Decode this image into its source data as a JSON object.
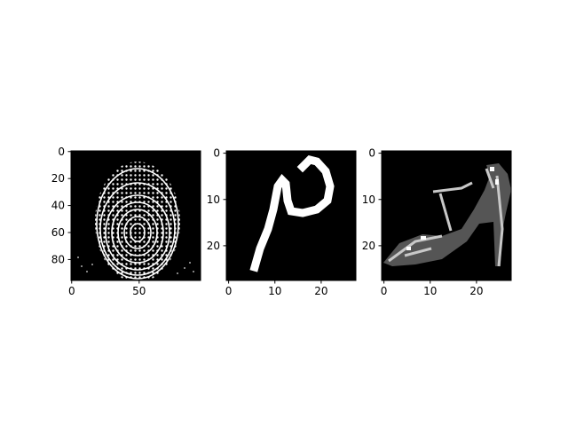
{
  "chart_data": [
    {
      "type": "heatmap",
      "image": "fingerprint",
      "colormap": "gray",
      "xlim": [
        -0.5,
        95.5
      ],
      "ylim": [
        95.5,
        -0.5
      ],
      "xticks": [
        0,
        50
      ],
      "yticks": [
        0,
        20,
        40,
        60,
        80
      ],
      "xticklabels": [
        "0",
        "50"
      ],
      "yticklabels": [
        "0",
        "20",
        "40",
        "60",
        "80"
      ]
    },
    {
      "type": "heatmap",
      "image": "handwritten-character",
      "colormap": "gray",
      "xlim": [
        -0.5,
        27.5
      ],
      "ylim": [
        27.5,
        -0.5
      ],
      "xticks": [
        0,
        10,
        20
      ],
      "yticks": [
        0,
        10,
        20
      ],
      "xticklabels": [
        "0",
        "10",
        "20"
      ],
      "yticklabels": [
        "0",
        "10",
        "20"
      ]
    },
    {
      "type": "heatmap",
      "image": "high-heel-sandal",
      "colormap": "gray",
      "xlim": [
        -0.5,
        27.5
      ],
      "ylim": [
        27.5,
        -0.5
      ],
      "xticks": [
        0,
        10,
        20
      ],
      "yticks": [
        0,
        10,
        20
      ],
      "xticklabels": [
        "0",
        "10",
        "20"
      ],
      "yticklabels": [
        "0",
        "10",
        "20"
      ]
    }
  ],
  "colors": {
    "background": "#000000",
    "foreground": "#ffffff",
    "axes": "#000000"
  }
}
